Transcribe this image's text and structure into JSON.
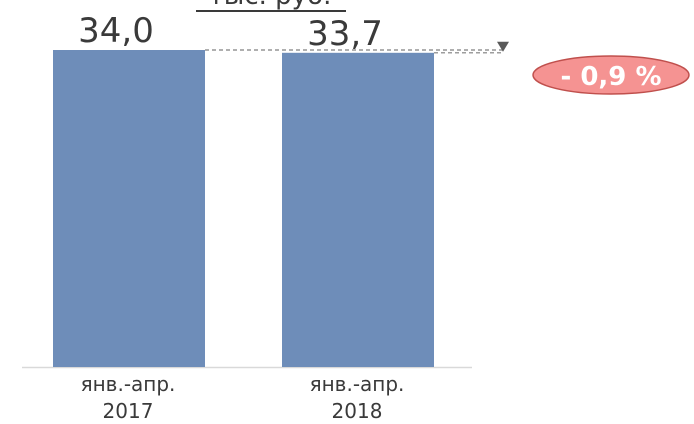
{
  "chart_data": {
    "type": "bar",
    "units": "тыс. руб.",
    "categories": [
      [
        "янв.-апр.",
        "2017"
      ],
      [
        "янв.-апр.",
        "2018"
      ]
    ],
    "values": [
      34.0,
      33.7
    ],
    "value_labels": [
      "34,0",
      "33,7"
    ],
    "ylim": [
      0,
      34.0
    ],
    "grid": false,
    "colors": {
      "bar": "#6e8db9",
      "badge_fill": "#f59392",
      "badge_stroke": "#c0504d",
      "guide": "#7f7f7f"
    },
    "change": {
      "label": "- 0,9 %",
      "direction": "down"
    }
  }
}
